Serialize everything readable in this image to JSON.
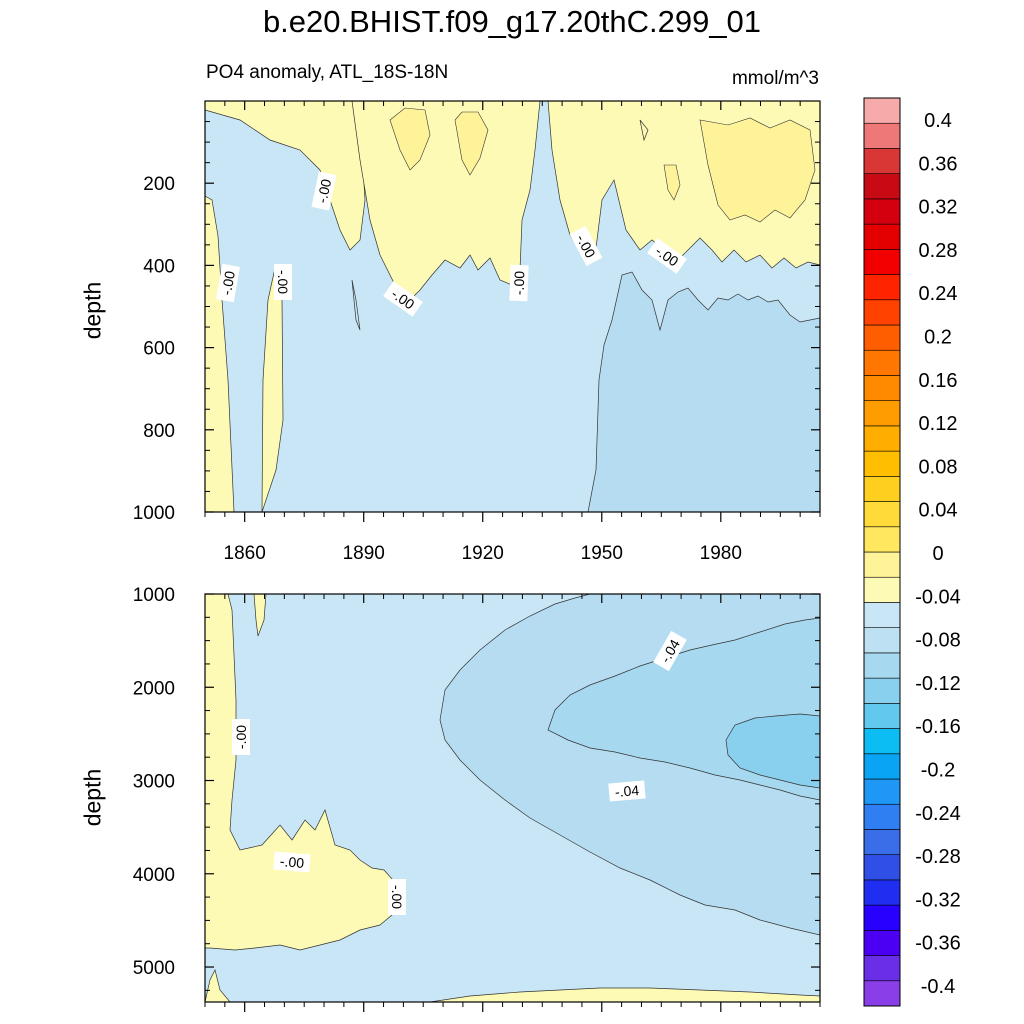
{
  "title": "b.e20.BHIST.f09_g17.20thC.299_01",
  "subtitle": "PO4 anomaly, ATL_18S-18N",
  "units": "mmol/m^3",
  "colors": {
    "levels": [
      "#8a3ee8",
      "#6a2ee8",
      "#4b00f4",
      "#2800ff",
      "#1f2ef0",
      "#2f4fe6",
      "#3a6ee9",
      "#2f7ff3",
      "#1f97f5",
      "#0aa4f5",
      "#0bbdf2",
      "#62c8ee",
      "#89cfee",
      "#a6d8ef",
      "#bde0f2",
      "#c8e6f5",
      "#fdfab5",
      "#fff39a",
      "#ffe760",
      "#ffdb3a",
      "#ffcf20",
      "#ffbe00",
      "#ffae00",
      "#ff9c00",
      "#ff8a00",
      "#ff7700",
      "#ff5e00",
      "#ff4200",
      "#ff2400",
      "#f20000",
      "#e40000",
      "#d40010",
      "#c80a14",
      "#d93636",
      "#ee7777",
      "#f7aaaa"
    ],
    "neg_tiny": "#c8e6f5",
    "neg_004": "#a6d8ef",
    "neg_008": "#89cfee",
    "pos_tiny": "#fdfab5",
    "pos_004": "#fff39a"
  },
  "chart_data": [
    {
      "type": "heatmap",
      "panel": "upper",
      "xlabel": "",
      "ylabel": "depth",
      "xlim": [
        1850,
        2005
      ],
      "ylim": [
        1000,
        0
      ],
      "xticks": [
        1860,
        1890,
        1920,
        1950,
        1980
      ],
      "yticks": [
        200,
        400,
        600,
        800,
        1000
      ],
      "contour_labels": [
        "-.00",
        "-.00",
        "-.00",
        "-.00",
        "-.00",
        "-.00",
        "-.00"
      ]
    },
    {
      "type": "heatmap",
      "panel": "lower",
      "xlabel": "",
      "ylabel": "depth",
      "xlim": [
        1850,
        2005
      ],
      "ylim": [
        5375,
        1000
      ],
      "yticks": [
        1000,
        2000,
        3000,
        4000,
        5000
      ],
      "contour_labels": [
        "-.04",
        "-.04",
        "-.00",
        "-.00",
        "-.00"
      ]
    },
    {
      "type": "colorbar",
      "tick_labels": [
        "0.4",
        "0.36",
        "0.32",
        "0.28",
        "0.24",
        "0.2",
        "0.16",
        "0.12",
        "0.08",
        "0.04",
        "0",
        "-0.04",
        "-0.08",
        "-0.12",
        "-0.16",
        "-0.2",
        "-0.24",
        "-0.28",
        "-0.32",
        "-0.36",
        "-0.4"
      ]
    }
  ]
}
